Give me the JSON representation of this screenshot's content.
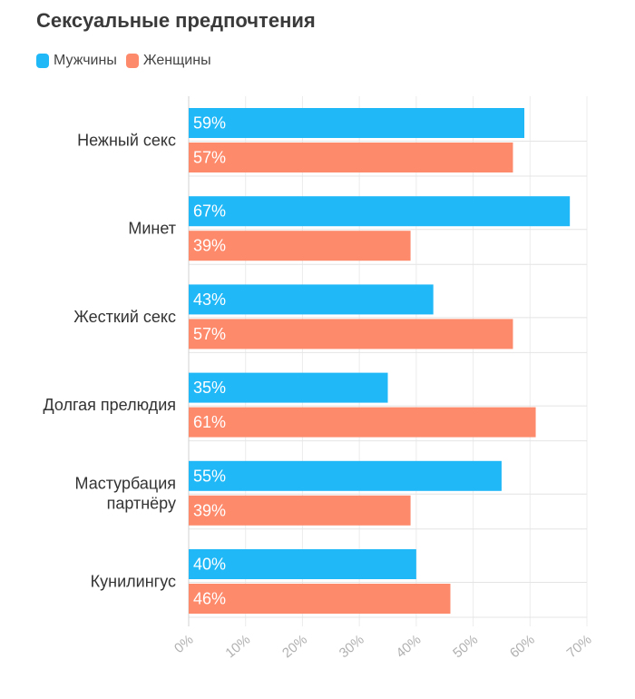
{
  "title": "Сексуальные предпочтения",
  "legend": [
    {
      "label": "Мужчины",
      "color": "#21b8f8"
    },
    {
      "label": "Женщины",
      "color": "#fe8a6c"
    }
  ],
  "chart_data": {
    "type": "bar",
    "orientation": "horizontal",
    "title": "Сексуальные предпочтения",
    "categories": [
      [
        "Нежный секс"
      ],
      [
        "Минет"
      ],
      [
        "Жесткий секс"
      ],
      [
        "Долгая прелюдия"
      ],
      [
        "Мастурбация",
        "партнёру"
      ],
      [
        "Кунилингус"
      ]
    ],
    "series": [
      {
        "name": "Мужчины",
        "color": "#21b8f8",
        "values": [
          59,
          67,
          43,
          35,
          55,
          40
        ]
      },
      {
        "name": "Женщины",
        "color": "#fe8a6c",
        "values": [
          57,
          39,
          57,
          61,
          39,
          46
        ]
      }
    ],
    "value_suffix": "%",
    "xlim": [
      0,
      70
    ],
    "xticks": [
      "0%",
      "10%",
      "20%",
      "30%",
      "40%",
      "50%",
      "60%",
      "70%"
    ],
    "grid": true,
    "legend_position": "top-left"
  }
}
